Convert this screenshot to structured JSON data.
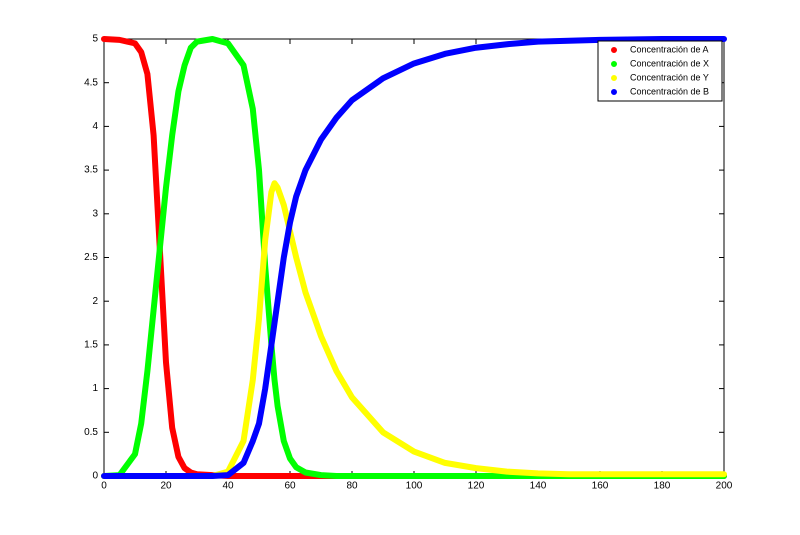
{
  "chart_data": {
    "type": "line",
    "x": [
      0,
      5,
      10,
      12,
      14,
      16,
      18,
      20,
      22,
      24,
      26,
      28,
      30,
      35,
      40,
      45,
      48,
      50,
      52,
      54,
      55,
      56,
      58,
      60,
      62,
      65,
      70,
      75,
      80,
      90,
      100,
      110,
      120,
      130,
      140,
      150,
      160,
      180,
      200
    ],
    "series": [
      {
        "name": "Concentración de A",
        "color": "#ff0000",
        "values": [
          5,
          4.99,
          4.95,
          4.85,
          4.6,
          3.9,
          2.6,
          1.3,
          0.55,
          0.22,
          0.09,
          0.04,
          0.02,
          0.01,
          0,
          0,
          0,
          0,
          0,
          0,
          0,
          0,
          0,
          0,
          0,
          0,
          0,
          0,
          0,
          0,
          0,
          0,
          0,
          0,
          0,
          0,
          0,
          0,
          0
        ]
      },
      {
        "name": "Concentración de X",
        "color": "#00ff00",
        "values": [
          0,
          0.01,
          0.25,
          0.6,
          1.2,
          1.9,
          2.6,
          3.3,
          3.9,
          4.4,
          4.7,
          4.9,
          4.97,
          5,
          4.95,
          4.7,
          4.2,
          3.5,
          2.4,
          1.5,
          1.1,
          0.8,
          0.4,
          0.2,
          0.1,
          0.04,
          0.01,
          0,
          0,
          0,
          0,
          0,
          0,
          0,
          0,
          0,
          0,
          0,
          0
        ]
      },
      {
        "name": "Concentración de Y",
        "color": "#ffff00",
        "values": [
          0,
          0,
          0,
          0,
          0,
          0,
          0,
          0,
          0,
          0,
          0,
          0,
          0,
          0,
          0.05,
          0.4,
          1.1,
          1.8,
          2.7,
          3.25,
          3.35,
          3.3,
          3.1,
          2.8,
          2.5,
          2.1,
          1.6,
          1.2,
          0.9,
          0.5,
          0.28,
          0.15,
          0.09,
          0.05,
          0.03,
          0.02,
          0.02,
          0.02,
          0.02
        ]
      },
      {
        "name": "Concentración de B",
        "color": "#0000ff",
        "values": [
          0,
          0,
          0,
          0,
          0,
          0,
          0,
          0,
          0,
          0,
          0,
          0,
          0,
          0,
          0.01,
          0.15,
          0.4,
          0.6,
          1.0,
          1.5,
          1.75,
          2.0,
          2.5,
          2.9,
          3.2,
          3.5,
          3.85,
          4.1,
          4.3,
          4.55,
          4.72,
          4.83,
          4.9,
          4.94,
          4.97,
          4.98,
          4.99,
          5,
          5
        ]
      }
    ],
    "xlim": [
      0,
      200
    ],
    "ylim": [
      0,
      5
    ],
    "xticks": [
      0,
      20,
      40,
      60,
      80,
      100,
      120,
      140,
      160,
      180,
      200
    ],
    "yticks": [
      0,
      0.5,
      1,
      1.5,
      2,
      2.5,
      3,
      3.5,
      4,
      4.5,
      5
    ],
    "legend": "upper right"
  }
}
